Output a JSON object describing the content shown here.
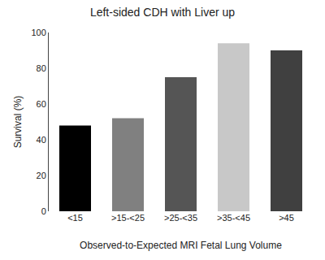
{
  "chart_data": {
    "type": "bar",
    "title": "Left-sided CDH with Liver up",
    "xlabel": "Observed-to-Expected MRI Fetal Lung Volume",
    "ylabel": "Survival (%)",
    "categories": [
      "<15",
      ">15-<25",
      ">25-<35",
      ">35-<45",
      ">45"
    ],
    "values": [
      48,
      52,
      75,
      94,
      90
    ],
    "colors": [
      "#000000",
      "#808080",
      "#555555",
      "#c8c8c8",
      "#404040"
    ],
    "ylim": [
      0,
      100
    ],
    "yticks": [
      0,
      20,
      40,
      60,
      80,
      100
    ],
    "grid": false
  }
}
